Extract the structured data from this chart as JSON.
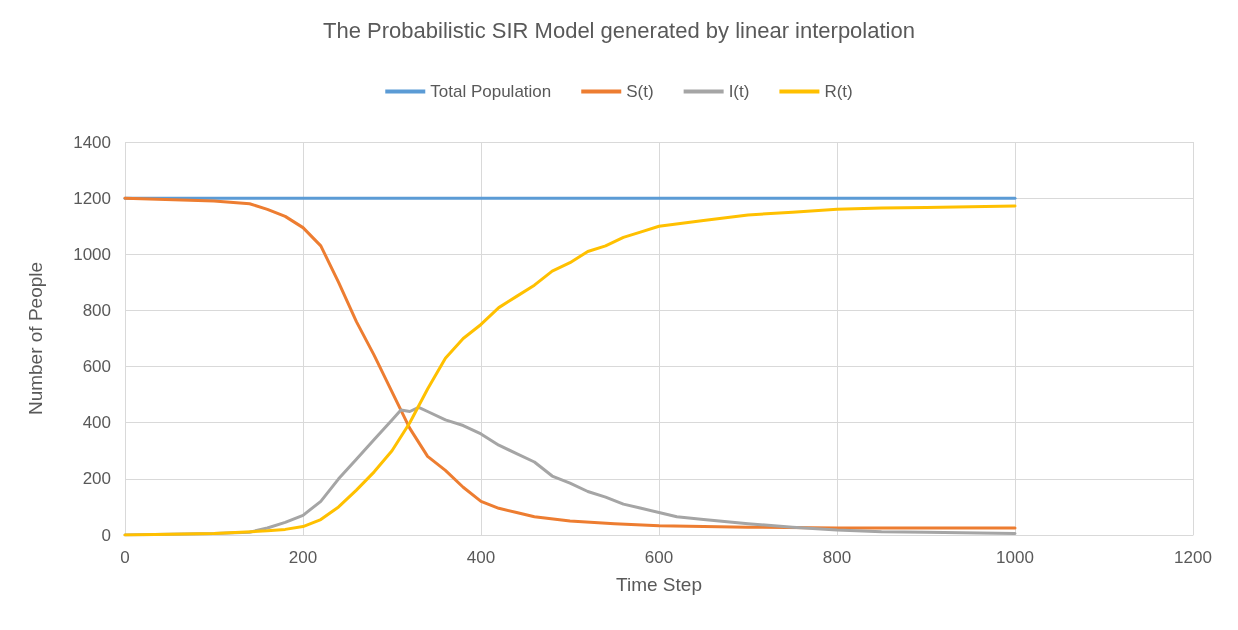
{
  "chart_data": {
    "type": "line",
    "title": "The Probabilistic SIR Model generated by linear interpolation",
    "xlabel": "Time Step",
    "ylabel": "Number of People",
    "xlim": [
      0,
      1200
    ],
    "xticks": [
      0,
      200,
      400,
      600,
      800,
      1000,
      1200
    ],
    "ylim": [
      0,
      1400
    ],
    "yticks": [
      0,
      200,
      400,
      600,
      800,
      1000,
      1200,
      1400
    ],
    "grid": true,
    "legend": "top",
    "marker": "none",
    "line_style": "solid",
    "series": [
      {
        "name": "Total Population",
        "color": "#5b9bd5",
        "x": [
          0,
          1000
        ],
        "values": [
          1200,
          1200
        ]
      },
      {
        "name": "S(t)",
        "color": "#ed7d31",
        "x": [
          0,
          100,
          140,
          160,
          180,
          200,
          220,
          240,
          260,
          280,
          300,
          320,
          340,
          360,
          380,
          400,
          420,
          440,
          460,
          500,
          550,
          600,
          700,
          800,
          1000
        ],
        "values": [
          1200,
          1190,
          1180,
          1160,
          1135,
          1095,
          1030,
          900,
          760,
          640,
          510,
          380,
          280,
          230,
          170,
          120,
          95,
          80,
          65,
          50,
          40,
          33,
          28,
          25,
          25
        ]
      },
      {
        "name": "I(t)",
        "color": "#a5a5a5",
        "x": [
          0,
          100,
          140,
          160,
          180,
          200,
          220,
          240,
          260,
          280,
          300,
          310,
          320,
          330,
          340,
          360,
          380,
          400,
          420,
          440,
          460,
          480,
          500,
          520,
          540,
          560,
          580,
          600,
          620,
          650,
          700,
          750,
          800,
          850,
          900,
          1000
        ],
        "values": [
          0,
          5,
          10,
          25,
          45,
          70,
          120,
          200,
          270,
          340,
          410,
          445,
          440,
          455,
          440,
          410,
          390,
          360,
          320,
          290,
          260,
          210,
          185,
          155,
          135,
          110,
          95,
          80,
          65,
          55,
          40,
          28,
          18,
          12,
          10,
          5
        ]
      },
      {
        "name": "R(t)",
        "color": "#ffc000",
        "x": [
          0,
          100,
          160,
          180,
          200,
          220,
          240,
          260,
          280,
          300,
          320,
          340,
          360,
          380,
          400,
          420,
          440,
          460,
          480,
          500,
          520,
          540,
          560,
          580,
          600,
          650,
          700,
          750,
          800,
          850,
          900,
          1000
        ],
        "values": [
          0,
          5,
          15,
          20,
          30,
          55,
          100,
          160,
          225,
          300,
          400,
          520,
          630,
          700,
          750,
          810,
          850,
          890,
          940,
          970,
          1010,
          1030,
          1060,
          1080,
          1100,
          1120,
          1140,
          1150,
          1160,
          1165,
          1167,
          1172
        ]
      }
    ]
  }
}
